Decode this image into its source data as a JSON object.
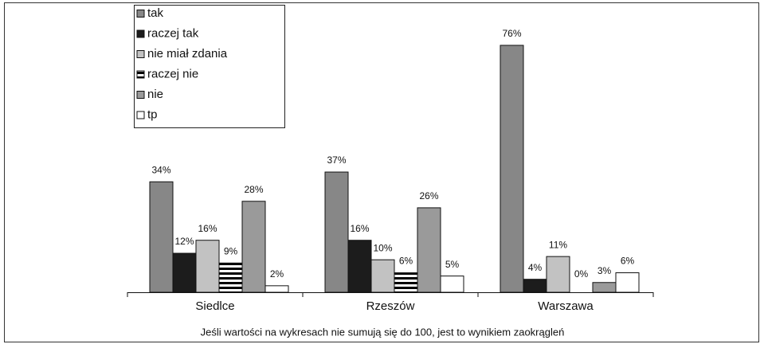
{
  "chart_data": {
    "type": "bar",
    "categories": [
      "Siedlce",
      "Rzeszów",
      "Warszawa"
    ],
    "series": [
      {
        "name": "tak",
        "color": "#878787",
        "values": [
          34,
          37,
          76
        ],
        "value_labels": [
          "34%",
          "37%",
          "76%"
        ]
      },
      {
        "name": "raczej tak",
        "color": "#1c1c1c",
        "values": [
          12,
          16,
          4
        ],
        "value_labels": [
          "12%",
          "16%",
          "4%"
        ]
      },
      {
        "name": "nie miał zdania",
        "color": "#c2c2c2",
        "values": [
          16,
          10,
          11
        ],
        "value_labels": [
          "16%",
          "10%",
          "11%"
        ]
      },
      {
        "name": "raczej nie",
        "color": "#000000",
        "hatch": "horizontal",
        "values": [
          9,
          6,
          0
        ],
        "value_labels": [
          "9%",
          "6%",
          "0%"
        ]
      },
      {
        "name": "nie",
        "color": "#9a9a9a",
        "values": [
          28,
          26,
          3
        ],
        "value_labels": [
          "28%",
          "26%",
          "3%"
        ]
      },
      {
        "name": "tp",
        "color": "#ffffff",
        "values": [
          2,
          5,
          6
        ],
        "value_labels": [
          "2%",
          "5%",
          "6%"
        ]
      }
    ],
    "legend": "upper-left",
    "footnote": "Jeśli wartości na wykresach nie sumują się do 100, jest to wynikiem zaokrągleń"
  }
}
